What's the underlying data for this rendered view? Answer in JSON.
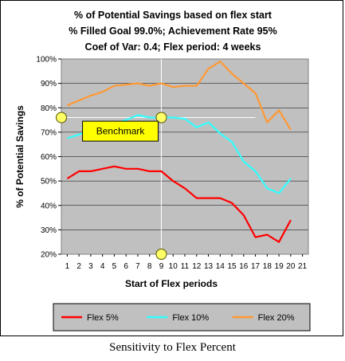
{
  "chart_data": {
    "type": "line",
    "title_lines": [
      "% of Potential Savings based on flex start",
      "% Filled Goal 99.0%; Achievement Rate 95%",
      "Coef of Var: 0.4; Flex period: 4 weeks"
    ],
    "xlabel": "Start of Flex periods",
    "ylabel": "% of Potential Savings",
    "x_ticks": [
      "1",
      "2",
      "3",
      "4",
      "5",
      "6",
      "7",
      "8",
      "9",
      "10",
      "11",
      "12",
      "13",
      "14",
      "15",
      "16",
      "17",
      "18",
      "19",
      "20",
      "21"
    ],
    "y_ticks": [
      "20%",
      "30%",
      "40%",
      "50%",
      "60%",
      "70%",
      "80%",
      "90%",
      "100%"
    ],
    "xlim": [
      0.5,
      21.5
    ],
    "ylim": [
      0.2,
      1.0
    ],
    "grid": "horizontal",
    "legend_position": "bottom",
    "plot_background": "#c0c0c0",
    "x": [
      1,
      2,
      3,
      4,
      5,
      6,
      7,
      8,
      9,
      10,
      11,
      12,
      13,
      14,
      15,
      16,
      17,
      18,
      19,
      20
    ],
    "series": [
      {
        "name": "Flex 5%",
        "color": "#ff0000",
        "values": [
          0.51,
          0.54,
          0.54,
          0.55,
          0.56,
          0.55,
          0.55,
          0.54,
          0.54,
          0.5,
          0.47,
          0.43,
          0.43,
          0.43,
          0.41,
          0.36,
          0.27,
          0.28,
          0.25,
          0.34
        ]
      },
      {
        "name": "Flex 10%",
        "color": "#33ffff",
        "values": [
          0.675,
          0.69,
          0.71,
          0.73,
          0.735,
          0.75,
          0.77,
          0.76,
          0.76,
          0.76,
          0.755,
          0.72,
          0.74,
          0.695,
          0.66,
          0.58,
          0.54,
          0.47,
          0.45,
          0.51
        ]
      },
      {
        "name": "Flex 20%",
        "color": "#ff9933",
        "values": [
          0.81,
          0.83,
          0.85,
          0.865,
          0.89,
          0.895,
          0.9,
          0.89,
          0.9,
          0.885,
          0.89,
          0.89,
          0.96,
          0.99,
          0.94,
          0.9,
          0.86,
          0.74,
          0.79,
          0.71
        ]
      }
    ],
    "benchmark": {
      "label": "Benchmark",
      "x": 9,
      "y": 0.76,
      "marker_color": "#ffff66",
      "box_color": "#ffff00",
      "line_color": "#ffffff"
    }
  },
  "caption": "Sensitivity to Flex Percent"
}
